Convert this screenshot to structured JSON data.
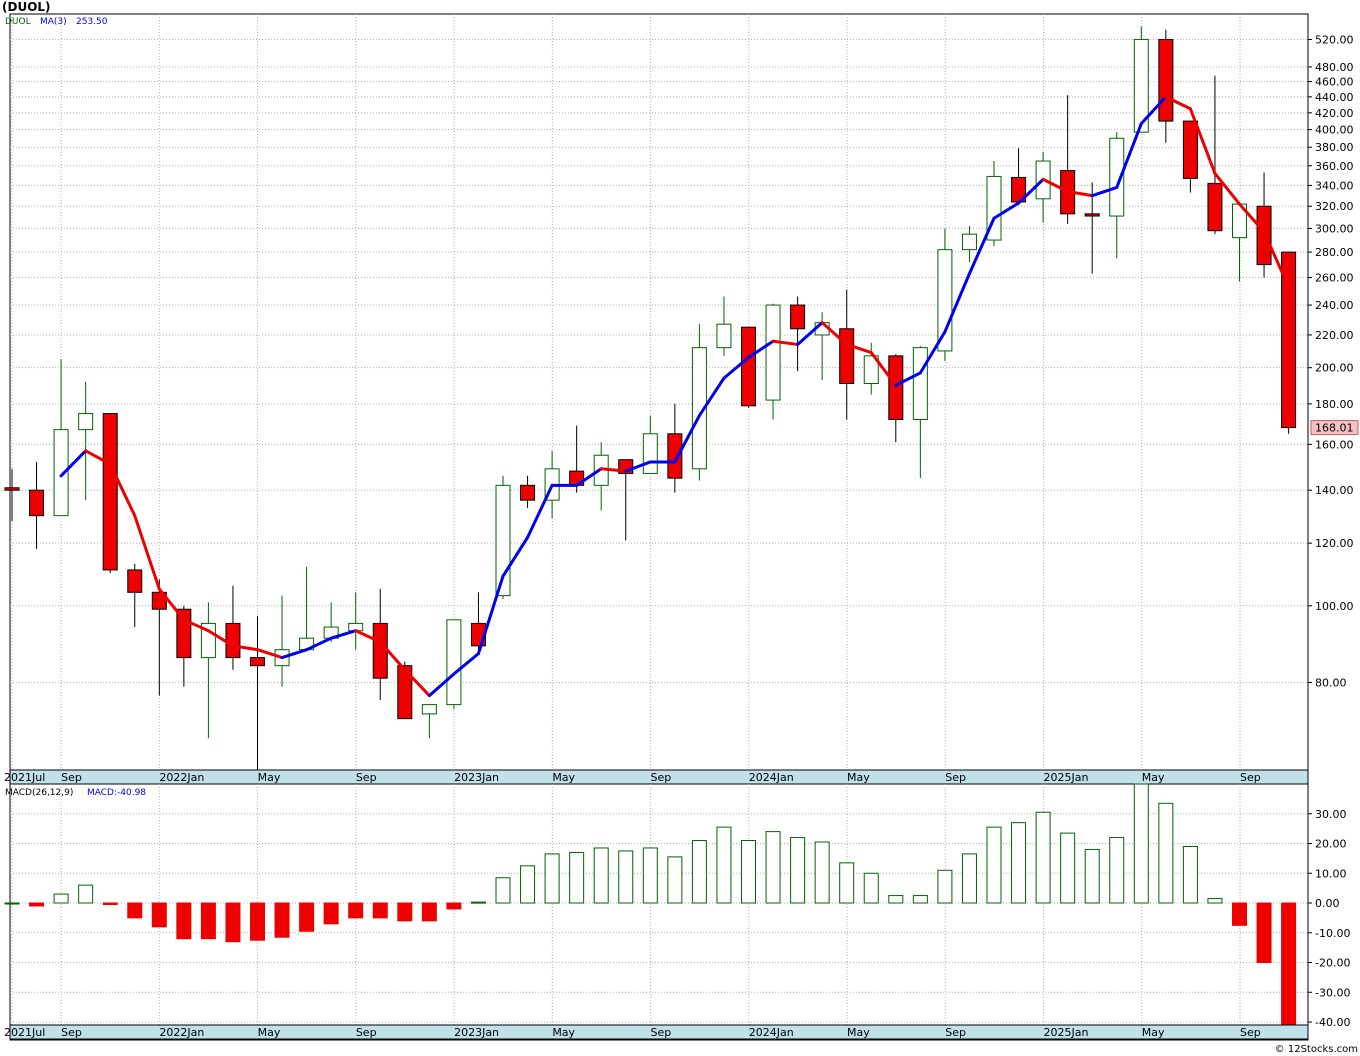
{
  "header": {
    "symbol": "(DUOL)"
  },
  "footer": {
    "credit": "© 12Stocks.com"
  },
  "colors": {
    "up_line": "#0000ee",
    "down_line": "#ee0000",
    "down_body": "#ee0000",
    "up_body_stroke": "#006400",
    "grid": "#b0b0b0",
    "axis_band": "#c0e0ea",
    "price_label_bg": "#f4c2c2"
  },
  "price_panel": {
    "legend_symbol": "DUOL",
    "legend_ma": "MA(3)",
    "legend_ma_value": "253.50",
    "last_price_label": "168.01",
    "y_scale": "log",
    "y_ticks": [
      "80.00",
      "100.00",
      "120.00",
      "140.00",
      "160.00",
      "180.00",
      "200.00",
      "220.00",
      "240.00",
      "260.00",
      "280.00",
      "300.00",
      "320.00",
      "340.00",
      "360.00",
      "380.00",
      "400.00",
      "420.00",
      "440.00",
      "460.00",
      "480.00",
      "520.00"
    ],
    "x_labels": [
      "2021Jul",
      "Sep",
      "2022Jan",
      "May",
      "Sep",
      "2023Jan",
      "May",
      "Sep",
      "2024Jan",
      "May",
      "Sep",
      "2025Jan",
      "May",
      "Sep"
    ]
  },
  "macd_panel": {
    "legend_label": "MACD(26,12,9)",
    "legend_value": "MACD:-40.98",
    "y_ticks": [
      "30.00",
      "20.00",
      "10.00",
      "0.00",
      "-10.00",
      "-20.00",
      "-30.00",
      "-40.00"
    ],
    "x_labels": [
      "2021Jul",
      "Sep",
      "2022Jan",
      "May",
      "Sep",
      "2023Jan",
      "May",
      "Sep",
      "2024Jan",
      "May",
      "Sep",
      "2025Jan",
      "May",
      "Sep"
    ]
  },
  "chart_data": [
    {
      "type": "candlestick",
      "title": "DUOL",
      "y_scale": "log",
      "ylim": [
        62,
        560
      ],
      "x_label_months": [
        0,
        2,
        6,
        10,
        14,
        18,
        22,
        26,
        30,
        34,
        38,
        42,
        46,
        50
      ],
      "candles": [
        {
          "o": 141,
          "h": 149,
          "l": 128,
          "c": 140
        },
        {
          "o": 140,
          "h": 152,
          "l": 118,
          "c": 130
        },
        {
          "o": 130,
          "h": 205,
          "l": 130,
          "c": 167
        },
        {
          "o": 167,
          "h": 192,
          "l": 136,
          "c": 175
        },
        {
          "o": 175,
          "h": 175,
          "l": 110,
          "c": 111
        },
        {
          "o": 111,
          "h": 113,
          "l": 94,
          "c": 104
        },
        {
          "o": 104,
          "h": 108,
          "l": 77,
          "c": 99
        },
        {
          "o": 99,
          "h": 100,
          "l": 79,
          "c": 86
        },
        {
          "o": 86,
          "h": 101,
          "l": 68,
          "c": 95
        },
        {
          "o": 95,
          "h": 106,
          "l": 83,
          "c": 86
        },
        {
          "o": 86,
          "h": 97,
          "l": 62,
          "c": 84
        },
        {
          "o": 84,
          "h": 103,
          "l": 79,
          "c": 88
        },
        {
          "o": 88,
          "h": 112,
          "l": 88,
          "c": 91
        },
        {
          "o": 91,
          "h": 101,
          "l": 90,
          "c": 94
        },
        {
          "o": 93,
          "h": 104,
          "l": 88,
          "c": 95
        },
        {
          "o": 95,
          "h": 105,
          "l": 76,
          "c": 81
        },
        {
          "o": 84,
          "h": 85,
          "l": 72,
          "c": 72
        },
        {
          "o": 73,
          "h": 75,
          "l": 68,
          "c": 75
        },
        {
          "o": 75,
          "h": 96,
          "l": 74,
          "c": 96
        },
        {
          "o": 95,
          "h": 104,
          "l": 88,
          "c": 89
        },
        {
          "o": 103,
          "h": 146,
          "l": 102,
          "c": 142
        },
        {
          "o": 142,
          "h": 146,
          "l": 133,
          "c": 136
        },
        {
          "o": 136,
          "h": 157,
          "l": 129,
          "c": 149
        },
        {
          "o": 148,
          "h": 169,
          "l": 139,
          "c": 142
        },
        {
          "o": 142,
          "h": 161,
          "l": 132,
          "c": 155
        },
        {
          "o": 153,
          "h": 153,
          "l": 121,
          "c": 147
        },
        {
          "o": 147,
          "h": 174,
          "l": 147,
          "c": 165
        },
        {
          "o": 165,
          "h": 180,
          "l": 139,
          "c": 145
        },
        {
          "o": 149,
          "h": 227,
          "l": 144,
          "c": 212
        },
        {
          "o": 212,
          "h": 246,
          "l": 207,
          "c": 227
        },
        {
          "o": 225,
          "h": 225,
          "l": 178,
          "c": 179
        },
        {
          "o": 182,
          "h": 241,
          "l": 172,
          "c": 240
        },
        {
          "o": 240,
          "h": 246,
          "l": 198,
          "c": 224
        },
        {
          "o": 220,
          "h": 235,
          "l": 193,
          "c": 228
        },
        {
          "o": 224,
          "h": 251,
          "l": 172,
          "c": 191
        },
        {
          "o": 191,
          "h": 215,
          "l": 185,
          "c": 207
        },
        {
          "o": 207,
          "h": 208,
          "l": 161,
          "c": 172
        },
        {
          "o": 172,
          "h": 213,
          "l": 145,
          "c": 212
        },
        {
          "o": 210,
          "h": 300,
          "l": 204,
          "c": 282
        },
        {
          "o": 282,
          "h": 302,
          "l": 272,
          "c": 295
        },
        {
          "o": 290,
          "h": 365,
          "l": 285,
          "c": 349
        },
        {
          "o": 348,
          "h": 379,
          "l": 321,
          "c": 324
        },
        {
          "o": 327,
          "h": 375,
          "l": 305,
          "c": 365
        },
        {
          "o": 355,
          "h": 442,
          "l": 304,
          "c": 313
        },
        {
          "o": 313,
          "h": 343,
          "l": 263,
          "c": 311
        },
        {
          "o": 311,
          "h": 397,
          "l": 275,
          "c": 390
        },
        {
          "o": 397,
          "h": 540,
          "l": 397,
          "c": 520
        },
        {
          "o": 520,
          "h": 535,
          "l": 385,
          "c": 410
        },
        {
          "o": 410,
          "h": 410,
          "l": 333,
          "c": 347
        },
        {
          "o": 342,
          "h": 468,
          "l": 295,
          "c": 298
        },
        {
          "o": 292,
          "h": 320,
          "l": 257,
          "c": 322
        },
        {
          "o": 320,
          "h": 353,
          "l": 260,
          "c": 270
        },
        {
          "o": 280,
          "h": 280,
          "l": 165,
          "c": 168
        }
      ],
      "ma_period": 3,
      "ma_values": [
        null,
        null,
        146,
        157,
        151,
        130,
        105,
        96,
        93,
        89,
        88,
        86,
        88,
        91,
        93,
        90,
        83,
        77,
        82,
        87,
        109,
        122,
        142,
        142,
        149,
        148,
        152,
        152,
        174,
        194,
        206,
        216,
        214,
        228,
        214,
        209,
        190,
        197,
        222,
        263,
        309,
        323,
        346,
        334,
        330,
        338,
        407,
        440,
        425,
        352,
        322,
        297,
        253
      ]
    },
    {
      "type": "bar",
      "title": "MACD(26,12,9)",
      "ylim": [
        -41,
        40
      ],
      "values": [
        0,
        -1,
        3,
        6,
        -0.5,
        -5,
        -8,
        -12,
        -12,
        -13,
        -12.5,
        -11.5,
        -9.5,
        -7,
        -5,
        -5,
        -6,
        -6,
        -2,
        0.3,
        8.5,
        12.5,
        16.5,
        17,
        18.5,
        17.5,
        18.5,
        15.5,
        21,
        25.5,
        21,
        24,
        22,
        20.5,
        13.5,
        10,
        2.5,
        2.5,
        11,
        16.5,
        25.5,
        27,
        30.5,
        23.5,
        18,
        22,
        40,
        33.5,
        19,
        1.5,
        -7.5,
        -20,
        -41
      ]
    }
  ]
}
